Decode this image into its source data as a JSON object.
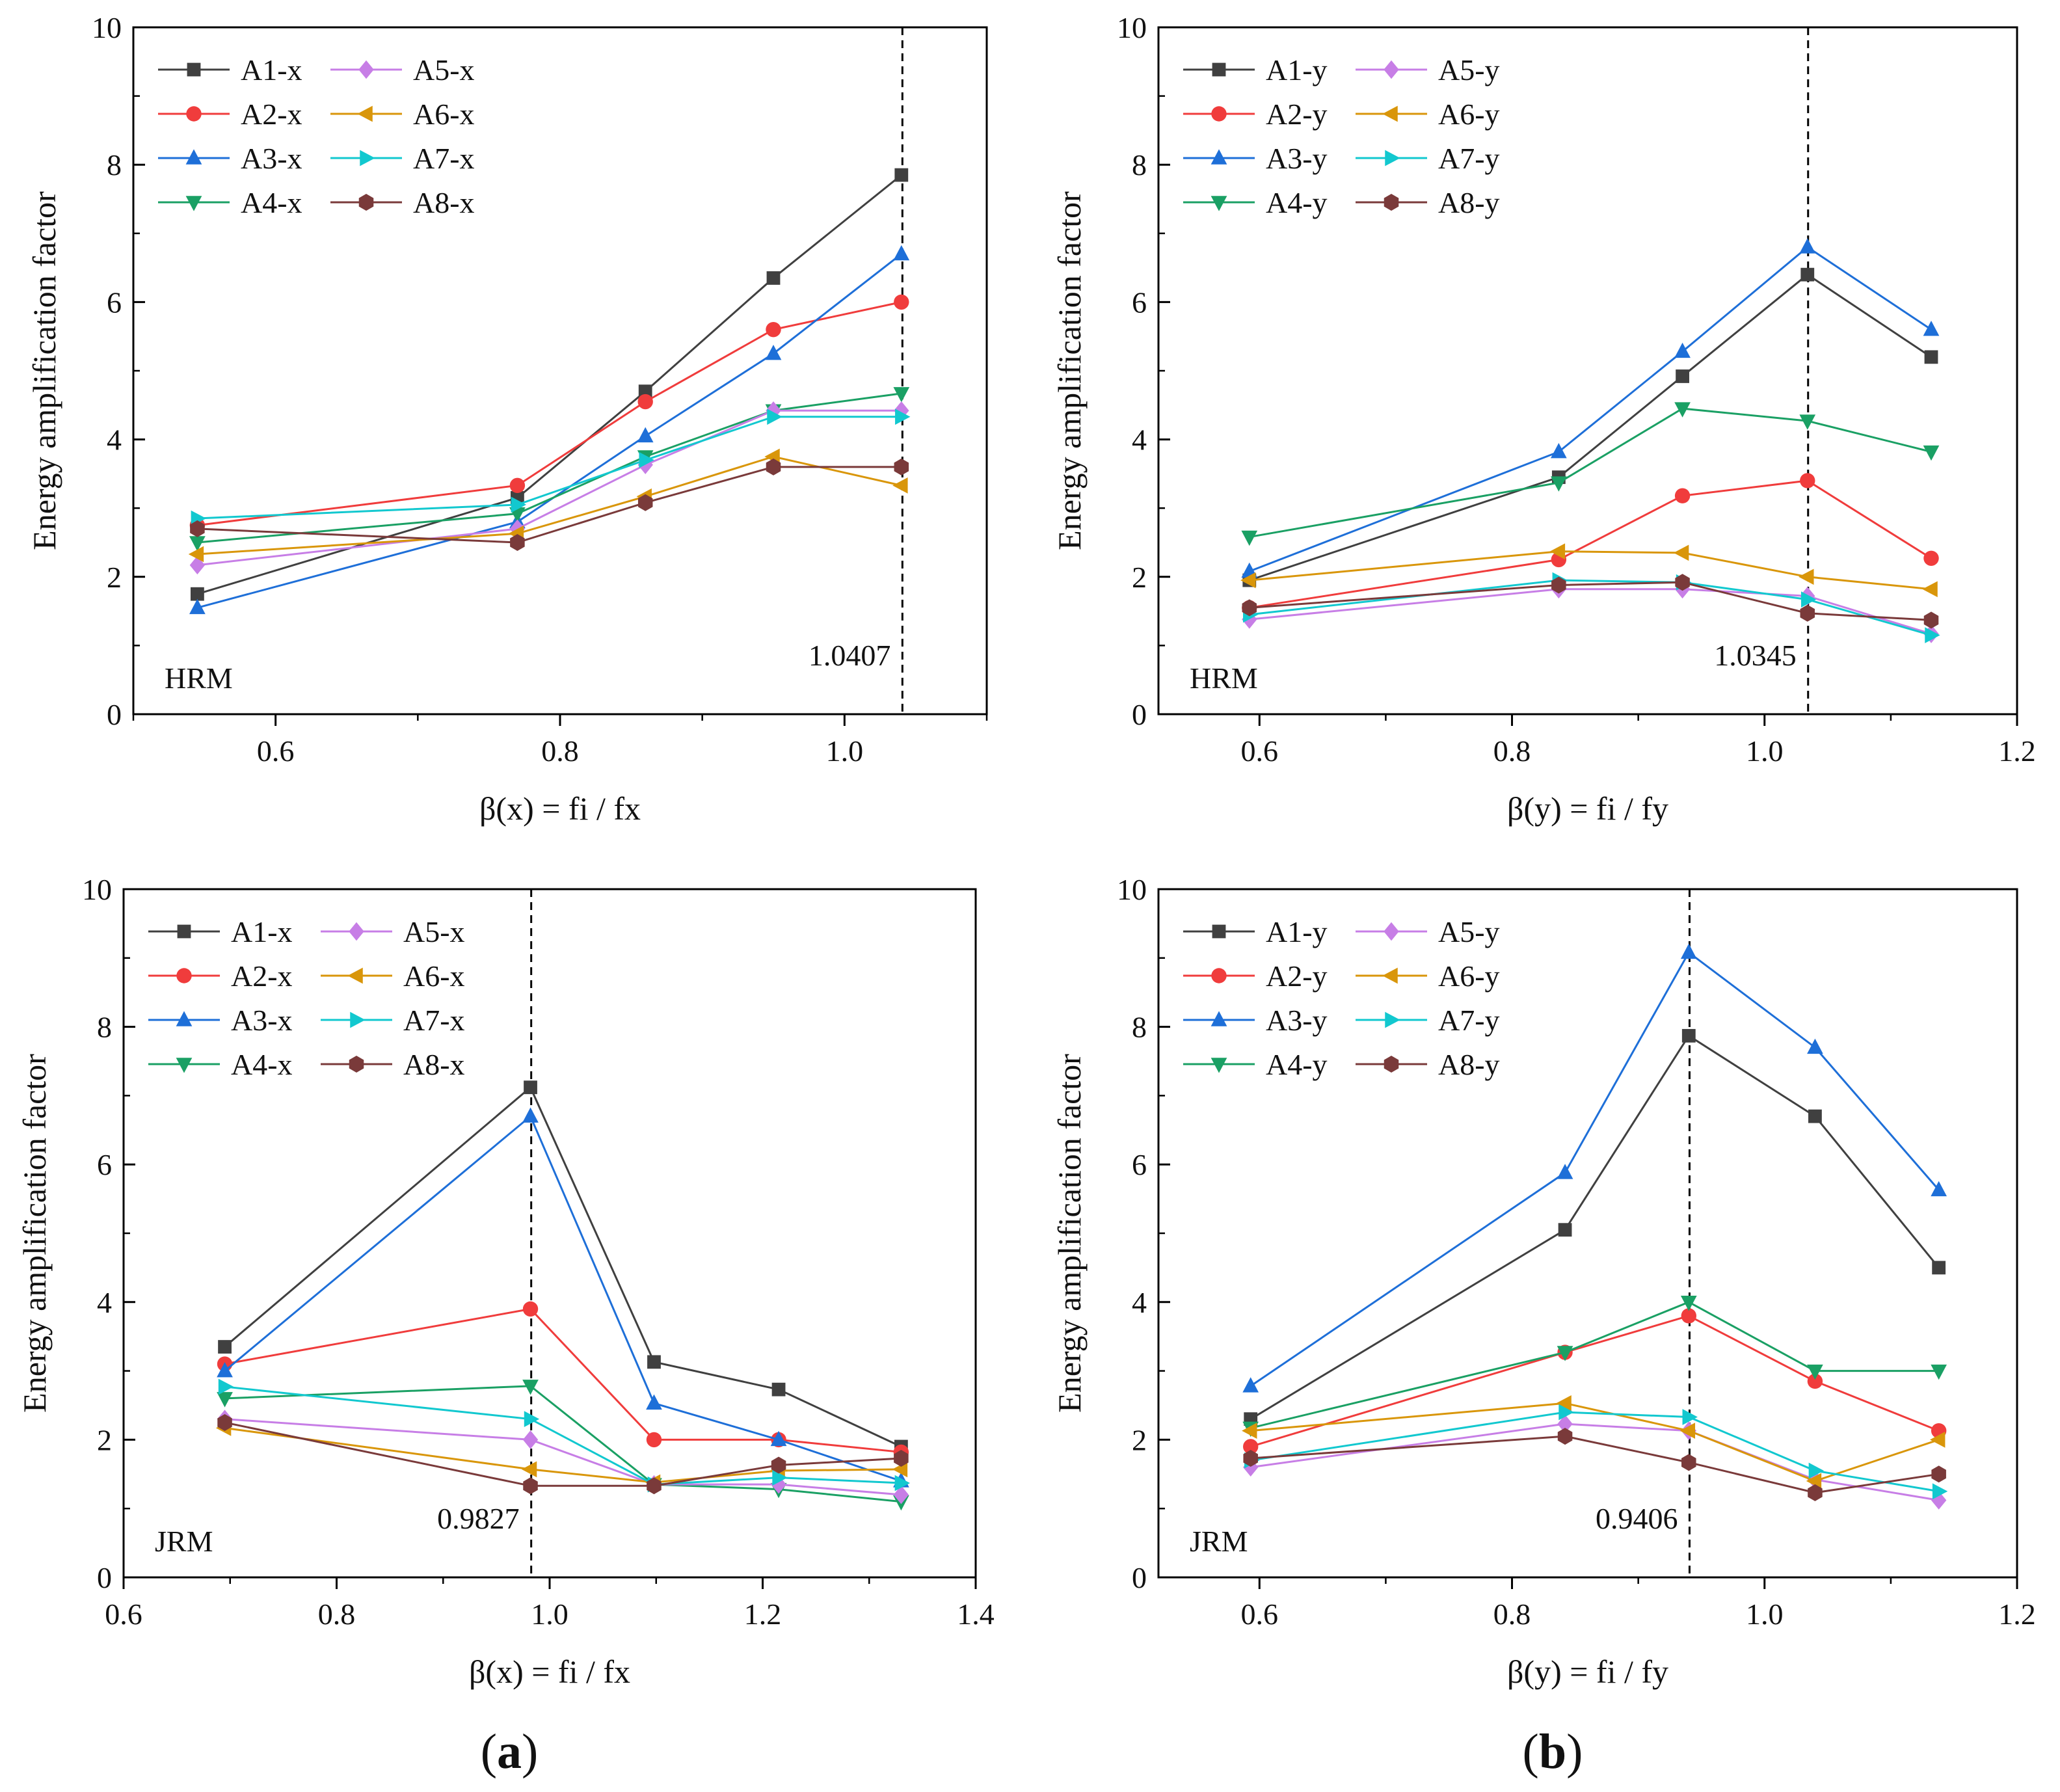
{
  "figure_labels": [
    "(a)",
    "(b)"
  ],
  "figure_label_parts": [
    {
      "open": "(",
      "letter": "a",
      "close": ")"
    },
    {
      "open": "(",
      "letter": "b",
      "close": ")"
    }
  ],
  "series_styles": {
    "A1": {
      "color": "#404040",
      "marker": "square"
    },
    "A2": {
      "color": "#f03c3c",
      "marker": "circle"
    },
    "A3": {
      "color": "#1e6fd8",
      "marker": "triangle-up"
    },
    "A4": {
      "color": "#1aa064",
      "marker": "triangle-down"
    },
    "A5": {
      "color": "#c77ee6",
      "marker": "diamond"
    },
    "A6": {
      "color": "#d9960a",
      "marker": "triangle-left"
    },
    "A7": {
      "color": "#12c8cf",
      "marker": "triangle-right"
    },
    "A8": {
      "color": "#7a3a3a",
      "marker": "hexagon"
    }
  },
  "chart_data": [
    {
      "type": "line",
      "panel": "HRM-x",
      "tag": "HRM",
      "xlabel": "β(x) = fi / fx",
      "ylabel": "Energy amplification factor",
      "xlim": [
        0.5,
        1.1
      ],
      "ylim": [
        0,
        10
      ],
      "xticks": [
        0.6,
        0.8,
        1.0
      ],
      "xtick_labels": [
        "0.6",
        "0.8",
        "1.0"
      ],
      "yticks": [
        0,
        2,
        4,
        6,
        8,
        10
      ],
      "ytick_labels": [
        "0",
        "2",
        "4",
        "6",
        "8",
        "10"
      ],
      "vline": {
        "x": 1.0407,
        "label": "1.0407"
      },
      "x": [
        0.545,
        0.77,
        0.86,
        0.95,
        1.04
      ],
      "series": [
        {
          "name": "A1-x",
          "key": "A1",
          "values": [
            1.75,
            3.15,
            4.7,
            6.35,
            7.85
          ]
        },
        {
          "name": "A2-x",
          "key": "A2",
          "values": [
            2.75,
            3.33,
            4.55,
            5.6,
            6.0
          ]
        },
        {
          "name": "A3-x",
          "key": "A3",
          "values": [
            1.55,
            2.8,
            4.05,
            5.25,
            6.7
          ]
        },
        {
          "name": "A4-x",
          "key": "A4",
          "values": [
            2.5,
            2.92,
            3.75,
            4.42,
            4.67
          ]
        },
        {
          "name": "A5-x",
          "key": "A5",
          "values": [
            2.17,
            2.7,
            3.63,
            4.42,
            4.42
          ]
        },
        {
          "name": "A6-x",
          "key": "A6",
          "values": [
            2.33,
            2.63,
            3.17,
            3.75,
            3.33
          ]
        },
        {
          "name": "A7-x",
          "key": "A7",
          "values": [
            2.85,
            3.05,
            3.7,
            4.33,
            4.33
          ]
        },
        {
          "name": "A8-x",
          "key": "A8",
          "values": [
            2.7,
            2.5,
            3.08,
            3.6,
            3.6
          ]
        }
      ]
    },
    {
      "type": "line",
      "panel": "HRM-y",
      "tag": "HRM",
      "xlabel": "β(y) = fi / fy",
      "ylabel": "Energy amplification factor",
      "xlim": [
        0.52,
        1.2
      ],
      "ylim": [
        0,
        10
      ],
      "xticks": [
        0.6,
        0.8,
        1.0,
        1.2
      ],
      "xtick_labels": [
        "0.6",
        "0.8",
        "1.0",
        "1.2"
      ],
      "yticks": [
        0,
        2,
        4,
        6,
        8,
        10
      ],
      "ytick_labels": [
        "0",
        "2",
        "4",
        "6",
        "8",
        "10"
      ],
      "vline": {
        "x": 1.0345,
        "label": "1.0345"
      },
      "x": [
        0.592,
        0.837,
        0.935,
        1.034,
        1.132
      ],
      "series": [
        {
          "name": "A1-y",
          "key": "A1",
          "values": [
            1.95,
            3.45,
            4.92,
            6.4,
            5.2
          ]
        },
        {
          "name": "A2-y",
          "key": "A2",
          "values": [
            1.55,
            2.25,
            3.18,
            3.4,
            2.27
          ]
        },
        {
          "name": "A3-y",
          "key": "A3",
          "values": [
            2.08,
            3.82,
            5.28,
            6.8,
            5.6
          ]
        },
        {
          "name": "A4-y",
          "key": "A4",
          "values": [
            2.58,
            3.37,
            4.45,
            4.27,
            3.82
          ]
        },
        {
          "name": "A5-y",
          "key": "A5",
          "values": [
            1.38,
            1.82,
            1.82,
            1.72,
            1.17
          ]
        },
        {
          "name": "A6-y",
          "key": "A6",
          "values": [
            1.95,
            2.37,
            2.35,
            2.0,
            1.82
          ]
        },
        {
          "name": "A7-y",
          "key": "A7",
          "values": [
            1.45,
            1.95,
            1.92,
            1.67,
            1.15
          ]
        },
        {
          "name": "A8-y",
          "key": "A8",
          "values": [
            1.55,
            1.88,
            1.92,
            1.47,
            1.37
          ]
        }
      ]
    },
    {
      "type": "line",
      "panel": "JRM-x",
      "tag": "JRM",
      "xlabel": "β(x) = fi / fx",
      "ylabel": "Energy amplification factor",
      "xlim": [
        0.6,
        1.4
      ],
      "ylim": [
        0,
        10
      ],
      "xticks": [
        0.6,
        0.8,
        1.0,
        1.2,
        1.4
      ],
      "xtick_labels": [
        "0.6",
        "0.8",
        "1.0",
        "1.2",
        "1.4"
      ],
      "yticks": [
        0,
        2,
        4,
        6,
        8,
        10
      ],
      "ytick_labels": [
        "0",
        "2",
        "4",
        "6",
        "8",
        "10"
      ],
      "vline": {
        "x": 0.9827,
        "label": "0.9827"
      },
      "x": [
        0.695,
        0.982,
        1.098,
        1.215,
        1.33
      ],
      "series": [
        {
          "name": "A1-x",
          "key": "A1",
          "values": [
            3.35,
            7.12,
            3.13,
            2.73,
            1.9
          ]
        },
        {
          "name": "A2-x",
          "key": "A2",
          "values": [
            3.1,
            3.9,
            2.0,
            2.0,
            1.82
          ]
        },
        {
          "name": "A3-x",
          "key": "A3",
          "values": [
            3.0,
            6.7,
            2.53,
            2.0,
            1.4
          ]
        },
        {
          "name": "A4-x",
          "key": "A4",
          "values": [
            2.6,
            2.78,
            1.35,
            1.28,
            1.1
          ]
        },
        {
          "name": "A5-x",
          "key": "A5",
          "values": [
            2.3,
            2.0,
            1.35,
            1.35,
            1.2
          ]
        },
        {
          "name": "A6-x",
          "key": "A6",
          "values": [
            2.17,
            1.57,
            1.38,
            1.55,
            1.57
          ]
        },
        {
          "name": "A7-x",
          "key": "A7",
          "values": [
            2.77,
            2.3,
            1.35,
            1.45,
            1.37
          ]
        },
        {
          "name": "A8-x",
          "key": "A8",
          "values": [
            2.25,
            1.33,
            1.33,
            1.63,
            1.73
          ]
        }
      ]
    },
    {
      "type": "line",
      "panel": "JRM-y",
      "tag": "JRM",
      "xlabel": "β(y) = fi / fy",
      "ylabel": "Energy amplification factor",
      "xlim": [
        0.52,
        1.2
      ],
      "ylim": [
        0,
        10
      ],
      "xticks": [
        0.6,
        0.8,
        1.0,
        1.2
      ],
      "xtick_labels": [
        "0.6",
        "0.8",
        "1.0",
        "1.2"
      ],
      "yticks": [
        0,
        2,
        4,
        6,
        8,
        10
      ],
      "ytick_labels": [
        "0",
        "2",
        "4",
        "6",
        "8",
        "10"
      ],
      "vline": {
        "x": 0.9406,
        "label": "0.9406"
      },
      "x": [
        0.593,
        0.842,
        0.94,
        1.04,
        1.138
      ],
      "series": [
        {
          "name": "A1-y",
          "key": "A1",
          "values": [
            2.3,
            5.05,
            7.87,
            6.7,
            4.5
          ]
        },
        {
          "name": "A2-y",
          "key": "A2",
          "values": [
            1.9,
            3.27,
            3.8,
            2.85,
            2.13
          ]
        },
        {
          "name": "A3-y",
          "key": "A3",
          "values": [
            2.78,
            5.88,
            9.08,
            7.7,
            5.63
          ]
        },
        {
          "name": "A4-y",
          "key": "A4",
          "values": [
            2.17,
            3.27,
            4.0,
            3.0,
            3.0
          ]
        },
        {
          "name": "A5-y",
          "key": "A5",
          "values": [
            1.6,
            2.23,
            2.13,
            1.42,
            1.12
          ]
        },
        {
          "name": "A6-y",
          "key": "A6",
          "values": [
            2.13,
            2.53,
            2.13,
            1.4,
            2.0
          ]
        },
        {
          "name": "A7-y",
          "key": "A7",
          "values": [
            1.7,
            2.4,
            2.33,
            1.55,
            1.25
          ]
        },
        {
          "name": "A8-y",
          "key": "A8",
          "values": [
            1.73,
            2.05,
            1.67,
            1.23,
            1.5
          ]
        }
      ]
    }
  ]
}
